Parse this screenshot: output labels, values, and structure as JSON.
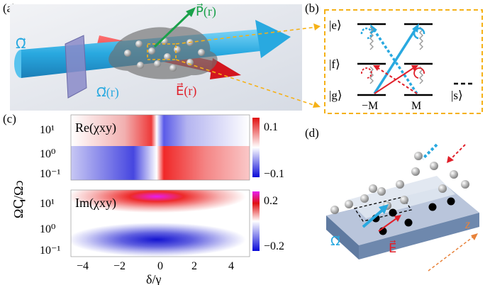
{
  "panels": {
    "a": "(a)",
    "b": "(b)",
    "c": "(c)",
    "d": "(d)"
  },
  "panel_a": {
    "omega_label": "Ω⃗",
    "omega_r_label": "Ω⃗(r)",
    "P_label": "P⃗(r)",
    "E_label": "E⃗(r)"
  },
  "panel_b": {
    "e": "|e⟩",
    "f": "|f⟩",
    "g": "|g⟩",
    "s": "|s⟩",
    "minusM": "−M",
    "M": "M"
  },
  "panel_c": {
    "re_label": "Re(χxy)",
    "im_label": "Im(χxy)",
    "ylabel": "Ωↅ/Ωↄ",
    "xlabel": "δ/γ",
    "yticks": [
      "10¹",
      "10⁰",
      "10⁻¹"
    ],
    "xticks": [
      "−4",
      "−2",
      "0",
      "2",
      "4"
    ],
    "cbar_re": [
      "0.1",
      "−0.1"
    ],
    "cbar_im": [
      "0.2",
      "−0.2"
    ]
  },
  "panel_d": {
    "omega": "Ω⃗",
    "E": "E⃗",
    "z": "z"
  },
  "colors": {
    "accent_blue": "#29a9e0",
    "accent_red": "#e0202a",
    "accent_green": "#1aa14a",
    "dashed_orange": "#f5b117"
  }
}
